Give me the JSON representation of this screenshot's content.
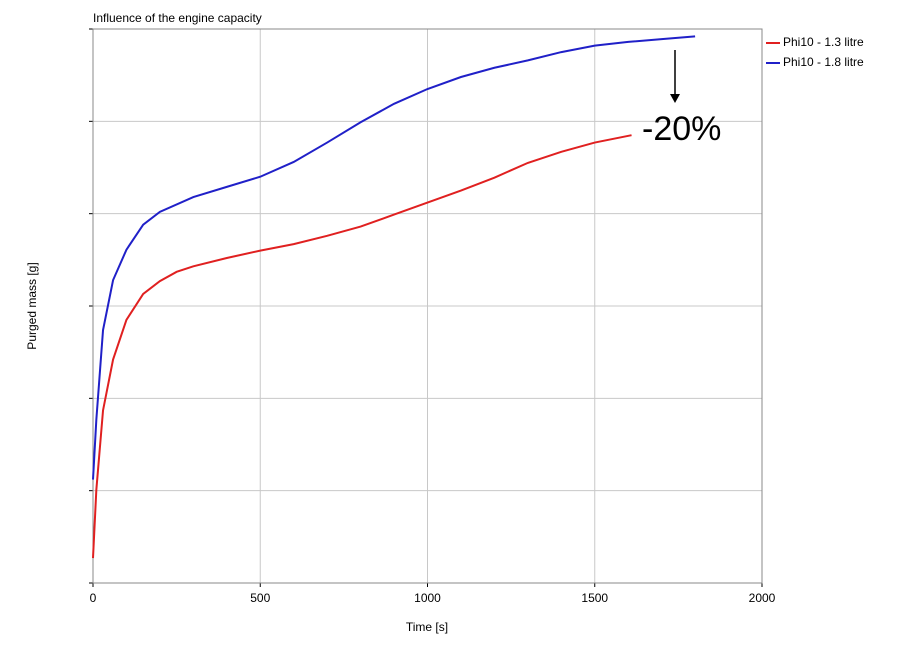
{
  "chart_data": {
    "type": "line",
    "title": "Influence of the engine capacity",
    "xlabel": "Time [s]",
    "ylabel": "Purged mass [g]",
    "annotation": "-20%",
    "xlim": [
      0,
      2000
    ],
    "xticks": [
      0,
      500,
      1000,
      1500,
      2000
    ],
    "ylim": [
      0,
      6
    ],
    "yticks": [
      0,
      1,
      2,
      3,
      4,
      5,
      6
    ],
    "ytick_labels": false,
    "grid": true,
    "legend": "outside-right",
    "series": [
      {
        "name": "Phi10 - 1.3 litre",
        "color": "#e02020",
        "x": [
          0,
          10,
          30,
          60,
          100,
          150,
          200,
          250,
          300,
          400,
          500,
          600,
          700,
          800,
          900,
          1000,
          1100,
          1200,
          1300,
          1400,
          1500,
          1610
        ],
        "values": [
          0.27,
          1.01,
          1.87,
          2.42,
          2.85,
          3.13,
          3.27,
          3.37,
          3.43,
          3.52,
          3.6,
          3.67,
          3.76,
          3.86,
          3.99,
          4.12,
          4.25,
          4.39,
          4.55,
          4.67,
          4.77,
          4.85
        ]
      },
      {
        "name": "Phi10 - 1.8 litre",
        "color": "#2020c8",
        "x": [
          0,
          10,
          30,
          60,
          100,
          150,
          200,
          300,
          400,
          500,
          600,
          700,
          800,
          900,
          1000,
          1100,
          1200,
          1300,
          1400,
          1500,
          1600,
          1700,
          1800
        ],
        "values": [
          1.12,
          1.77,
          2.74,
          3.28,
          3.61,
          3.88,
          4.02,
          4.18,
          4.29,
          4.4,
          4.56,
          4.77,
          4.99,
          5.19,
          5.35,
          5.48,
          5.58,
          5.66,
          5.75,
          5.82,
          5.86,
          5.89,
          5.92
        ]
      }
    ]
  }
}
